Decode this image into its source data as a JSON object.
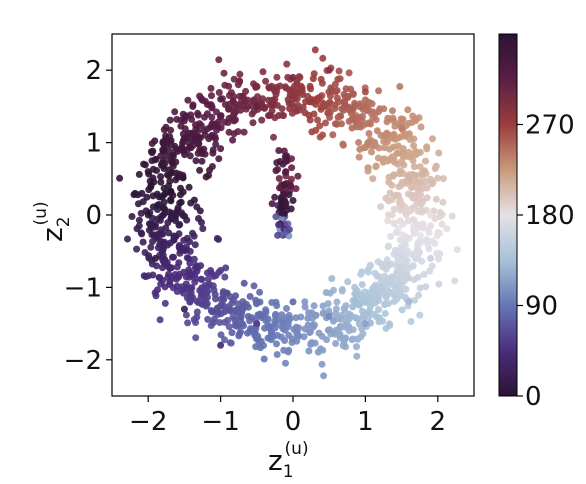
{
  "chart_data": {
    "type": "scatter",
    "title": "",
    "xlabel": {
      "base": "z",
      "sub": "1",
      "sup": "(u)"
    },
    "ylabel": {
      "base": "z",
      "sub": "2",
      "sup": "(u)"
    },
    "xlim": [
      -2.5,
      2.5
    ],
    "ylim": [
      -2.5,
      2.5
    ],
    "x_ticks": [
      -2,
      -1,
      0,
      1,
      2
    ],
    "x_tick_labels": [
      "−2",
      "−1",
      "0",
      "1",
      "2"
    ],
    "y_ticks": [
      -2,
      -1,
      0,
      1,
      2
    ],
    "y_tick_labels": [
      "−2",
      "−1",
      "0",
      "1",
      "2"
    ],
    "grid": false,
    "legend": "none",
    "colorbar": {
      "position": "right",
      "range": [
        0,
        360
      ],
      "ticks": [
        0,
        90,
        180,
        270
      ],
      "tick_labels": [
        "0",
        "90",
        "180",
        "270"
      ],
      "colormap": "twilight_shifted",
      "stops": [
        "#2a1433",
        "#4b2c7d",
        "#6576b5",
        "#a9c2d7",
        "#e6e1e7",
        "#c99a7c",
        "#9b3d3d",
        "#5a1d46",
        "#2a1433"
      ]
    },
    "marker_size": 3.5,
    "series": [
      {
        "count": 1500,
        "description": "points roughly on a ring of radius ~1.8, colored by a hue value 0-360; an inner spur of points near x=0, y in [-0.3, 0.9]",
        "points": [
          {
            "x": -2.0,
            "y": 0.6,
            "c": 355
          },
          {
            "x": -1.8,
            "y": 0.9,
            "c": 345
          },
          {
            "x": -1.5,
            "y": 1.3,
            "c": 330
          },
          {
            "x": -1.0,
            "y": 1.6,
            "c": 320
          },
          {
            "x": -0.5,
            "y": 1.5,
            "c": 310
          },
          {
            "x": 0.0,
            "y": 1.9,
            "c": 300
          },
          {
            "x": 0.5,
            "y": 2.0,
            "c": 285
          },
          {
            "x": 1.0,
            "y": 1.7,
            "c": 265
          },
          {
            "x": 1.5,
            "y": 1.2,
            "c": 240
          },
          {
            "x": 1.8,
            "y": 0.6,
            "c": 210
          },
          {
            "x": 1.9,
            "y": 0.0,
            "c": 180
          },
          {
            "x": 1.9,
            "y": -0.6,
            "c": 155
          },
          {
            "x": 1.6,
            "y": -1.2,
            "c": 130
          },
          {
            "x": 1.0,
            "y": -1.5,
            "c": 115
          },
          {
            "x": 0.5,
            "y": -1.4,
            "c": 100
          },
          {
            "x": 0.0,
            "y": -1.2,
            "c": 80
          },
          {
            "x": -0.5,
            "y": -1.5,
            "c": 55
          },
          {
            "x": -1.0,
            "y": -1.8,
            "c": 35
          },
          {
            "x": -1.5,
            "y": -1.3,
            "c": 18
          },
          {
            "x": -1.9,
            "y": -0.6,
            "c": 5
          },
          {
            "x": -2.0,
            "y": 0.0,
            "c": 2
          },
          {
            "x": -0.1,
            "y": 0.6,
            "c": 320
          },
          {
            "x": 0.0,
            "y": 0.2,
            "c": 350
          },
          {
            "x": -0.05,
            "y": -0.2,
            "c": 60
          }
        ]
      }
    ]
  }
}
